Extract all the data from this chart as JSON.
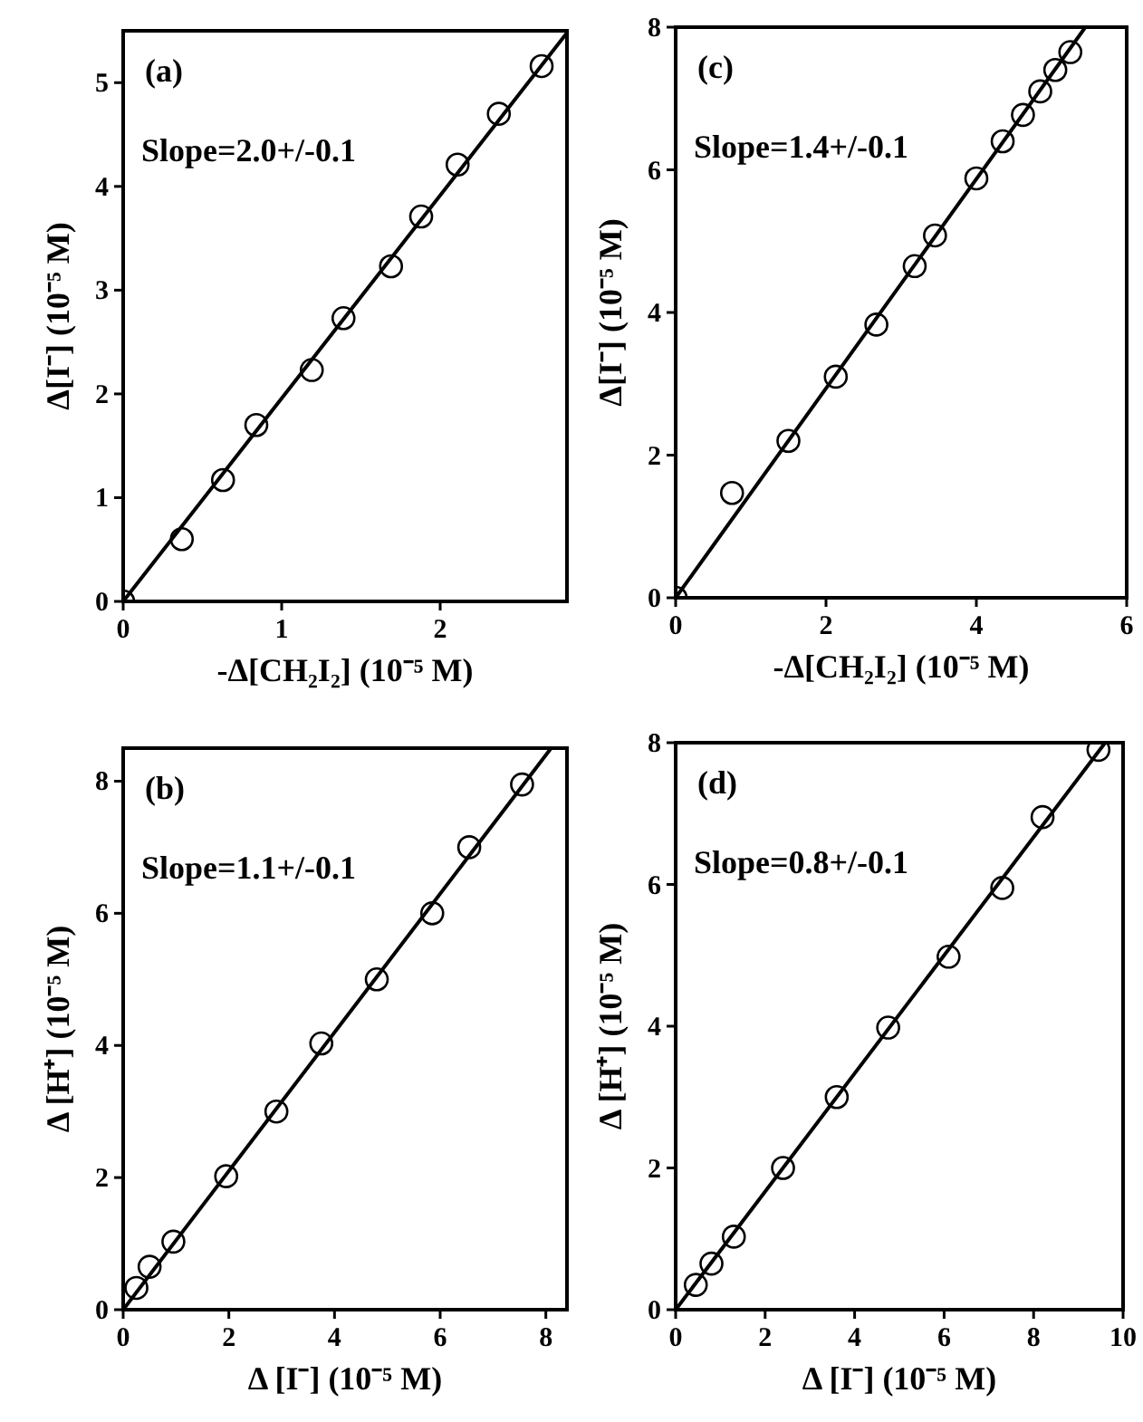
{
  "chart_data": [
    {
      "type": "scatter",
      "title": "(a)",
      "xlabel": "-Δ[CH₂I₂] (10⁻⁵ M)",
      "ylabel": "Δ[I⁻] (10⁻⁵ M)",
      "annotations": [
        "Slope=2.0+/-0.1"
      ],
      "xlim": [
        0,
        2.8
      ],
      "ylim": [
        0,
        5.5
      ],
      "xticks": [
        0,
        1,
        2
      ],
      "yticks": [
        0,
        1,
        2,
        3,
        4,
        5
      ],
      "series": [
        {
          "color": "#000000",
          "marker": "circle",
          "x": [
            0,
            0.37,
            0.63,
            0.84,
            1.19,
            1.39,
            1.69,
            1.88,
            2.11,
            2.37,
            2.64
          ],
          "values": [
            0,
            0.6,
            1.17,
            1.7,
            2.23,
            2.73,
            3.23,
            3.71,
            4.21,
            4.7,
            5.16
          ]
        },
        {
          "type": "line",
          "color": "#000000",
          "x": [
            0,
            2.8
          ],
          "values": [
            0,
            5.48
          ]
        }
      ]
    },
    {
      "type": "scatter",
      "title": "(c)",
      "xlabel": "-Δ[CH₂I₂] (10⁻⁵ M)",
      "ylabel": "Δ[I⁻] (10⁻⁵ M)",
      "annotations": [
        "Slope=1.4+/-0.1"
      ],
      "xlim": [
        0,
        6
      ],
      "ylim": [
        0,
        8
      ],
      "xticks": [
        0,
        2,
        4,
        6
      ],
      "yticks": [
        0,
        2,
        4,
        6,
        8
      ],
      "series": [
        {
          "color": "#000000",
          "marker": "circle",
          "x": [
            0,
            0.75,
            1.5,
            2.13,
            2.67,
            3.18,
            3.45,
            4.0,
            4.35,
            4.62,
            4.85,
            5.05,
            5.25
          ],
          "values": [
            0,
            1.47,
            2.2,
            3.1,
            3.83,
            4.65,
            5.08,
            5.88,
            6.4,
            6.77,
            7.1,
            7.4,
            7.65
          ]
        },
        {
          "type": "line",
          "color": "#000000",
          "x": [
            0,
            5.45
          ],
          "values": [
            0,
            8
          ]
        }
      ]
    },
    {
      "type": "scatter",
      "title": "(b)",
      "xlabel": "Δ [I⁻] (10⁻⁵ M)",
      "ylabel": "Δ [H⁺] (10⁻⁵ M)",
      "annotations": [
        "Slope=1.1+/-0.1"
      ],
      "xlim": [
        0,
        8.4
      ],
      "ylim": [
        0,
        8.5
      ],
      "xticks": [
        0,
        2,
        4,
        6,
        8
      ],
      "yticks": [
        0,
        2,
        4,
        6,
        8
      ],
      "series": [
        {
          "color": "#000000",
          "marker": "circle",
          "x": [
            0.25,
            0.5,
            0.95,
            1.95,
            2.9,
            3.75,
            4.8,
            5.85,
            6.55,
            7.55
          ],
          "values": [
            0.33,
            0.65,
            1.03,
            2.02,
            3.0,
            4.03,
            5.0,
            6.0,
            7.0,
            7.95
          ]
        },
        {
          "type": "line",
          "color": "#000000",
          "x": [
            0,
            8.1
          ],
          "values": [
            0,
            8.5
          ]
        }
      ]
    },
    {
      "type": "scatter",
      "title": "(d)",
      "xlabel": "Δ [I⁻] (10⁻⁵ M)",
      "ylabel": "Δ [H⁺] (10⁻⁵ M)",
      "annotations": [
        "Slope=0.8+/-0.1"
      ],
      "xlim": [
        0,
        10
      ],
      "ylim": [
        0,
        8
      ],
      "xticks": [
        0,
        2,
        4,
        6,
        8,
        10
      ],
      "yticks": [
        0,
        2,
        4,
        6,
        8
      ],
      "series": [
        {
          "color": "#000000",
          "marker": "circle",
          "x": [
            0.45,
            0.8,
            1.3,
            2.4,
            3.6,
            4.75,
            6.1,
            7.3,
            8.2,
            9.45
          ],
          "values": [
            0.35,
            0.65,
            1.03,
            2.0,
            3.0,
            3.98,
            4.98,
            5.95,
            6.95,
            7.9
          ]
        },
        {
          "type": "line",
          "color": "#000000",
          "x": [
            0,
            9.6
          ],
          "values": [
            0,
            8
          ]
        }
      ]
    }
  ]
}
